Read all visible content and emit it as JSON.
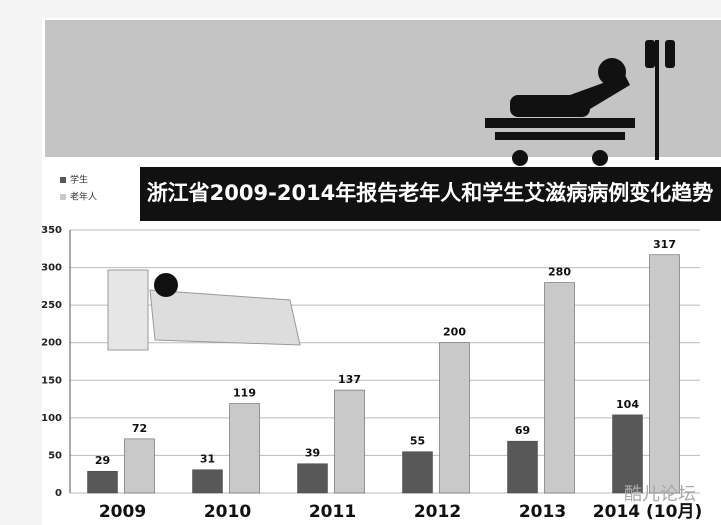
{
  "chart_data": {
    "type": "bar",
    "title": "浙江省2009-2014年报告老年人和学生艾滋病病例变化趋势",
    "categories": [
      "2009",
      "2010",
      "2011",
      "2012",
      "2013",
      "2014 (10月)"
    ],
    "series": [
      {
        "name": "学生",
        "color": "#585858",
        "values": [
          29,
          31,
          39,
          55,
          69,
          104
        ]
      },
      {
        "name": "老年人",
        "color": "#c9c9c9",
        "values": [
          72,
          119,
          137,
          200,
          280,
          317
        ]
      }
    ],
    "ylim": [
      0,
      350
    ],
    "yticks": [
      0,
      50,
      100,
      150,
      200,
      250,
      300,
      350
    ],
    "grid": true,
    "watermark": "酷儿论坛"
  }
}
